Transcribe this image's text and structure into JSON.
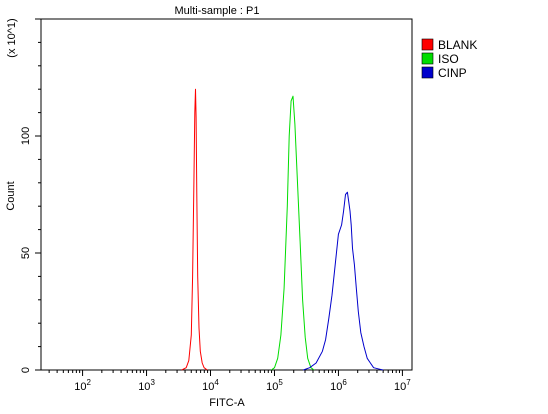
{
  "chart_data": {
    "type": "line",
    "title": "Multi-sample : P1",
    "xlabel": "FITC-A",
    "ylabel": "Count",
    "y_scale_note": "(x 10^1)",
    "x_scale": "log",
    "xlim_log10": [
      1.35,
      7.15
    ],
    "ylim": [
      0,
      150
    ],
    "x_ticks": [
      {
        "base": "10",
        "exp": "2",
        "value_log10": 2
      },
      {
        "base": "10",
        "exp": "3",
        "value_log10": 3
      },
      {
        "base": "10",
        "exp": "4",
        "value_log10": 4
      },
      {
        "base": "10",
        "exp": "5",
        "value_log10": 5
      },
      {
        "base": "10",
        "exp": "6",
        "value_log10": 6
      },
      {
        "base": "10",
        "exp": "7",
        "value_log10": 7
      }
    ],
    "y_ticks": [
      {
        "label": "0",
        "value": 0
      },
      {
        "label": "50",
        "value": 50
      },
      {
        "label": "100",
        "value": 100
      }
    ],
    "grid": false,
    "legend_position": "right",
    "series": [
      {
        "name": "BLANK",
        "color": "#ff0000",
        "x_log10": [
          3.55,
          3.62,
          3.66,
          3.7,
          3.72,
          3.74,
          3.755,
          3.765,
          3.775,
          3.785,
          3.8,
          3.82,
          3.84,
          3.87,
          3.9,
          3.95
        ],
        "values": [
          0,
          1,
          4,
          15,
          40,
          80,
          110,
          120,
          108,
          75,
          40,
          18,
          8,
          3,
          1,
          0
        ]
      },
      {
        "name": "ISO",
        "color": "#00dd00",
        "x_log10": [
          4.95,
          5.0,
          5.05,
          5.1,
          5.15,
          5.2,
          5.23,
          5.26,
          5.29,
          5.32,
          5.36,
          5.4,
          5.44,
          5.48,
          5.52,
          5.57,
          5.62
        ],
        "values": [
          0,
          1,
          5,
          15,
          35,
          70,
          100,
          115,
          117,
          105,
          80,
          55,
          30,
          14,
          5,
          1,
          0
        ]
      },
      {
        "name": "CINP",
        "color": "#0000cc",
        "x_log10": [
          5.45,
          5.55,
          5.65,
          5.75,
          5.8,
          5.85,
          5.9,
          5.95,
          6.0,
          6.05,
          6.08,
          6.11,
          6.14,
          6.16,
          6.18,
          6.2,
          6.22,
          6.25,
          6.28,
          6.31,
          6.35,
          6.4,
          6.45,
          6.5,
          6.55,
          6.62,
          6.7
        ],
        "values": [
          0,
          1,
          3,
          8,
          13,
          22,
          32,
          45,
          58,
          62,
          68,
          75,
          76,
          72,
          68,
          62,
          52,
          45,
          35,
          25,
          16,
          10,
          5,
          3,
          1,
          0.5,
          0
        ]
      }
    ]
  }
}
